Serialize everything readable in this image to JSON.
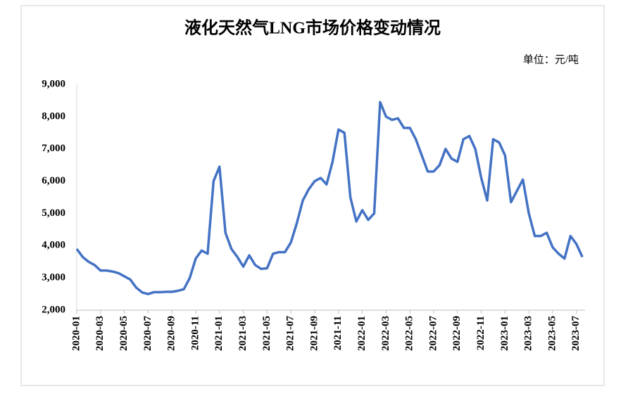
{
  "chart_data": {
    "type": "line",
    "title": "液化天然气LNG市场价格变动情况",
    "unit_label": "单位：元/吨",
    "categories": [
      "2020-01",
      null,
      null,
      null,
      "2020-03",
      null,
      null,
      null,
      "2020-05",
      null,
      null,
      null,
      "2020-07",
      null,
      null,
      null,
      "2020-09",
      null,
      null,
      null,
      "2020-11",
      null,
      null,
      null,
      "2021-01",
      null,
      null,
      null,
      "2021-03",
      null,
      null,
      null,
      "2021-05",
      null,
      null,
      null,
      "2021-07",
      null,
      null,
      null,
      "2021-09",
      null,
      null,
      null,
      "2021-11",
      null,
      null,
      null,
      "2022-01",
      null,
      null,
      null,
      "2022-03",
      null,
      null,
      null,
      "2022-05",
      null,
      null,
      null,
      "2022-07",
      null,
      null,
      null,
      "2022-09",
      null,
      null,
      null,
      "2022-11",
      null,
      null,
      null,
      "2023-01",
      null,
      null,
      null,
      "2023-03",
      null,
      null,
      null,
      "2023-05",
      null,
      null,
      null,
      "2023-07",
      null
    ],
    "series": [
      {
        "color": "#4472c4",
        "values": [
          3900,
          3650,
          3500,
          3400,
          3230,
          3230,
          3200,
          3150,
          3050,
          2950,
          2700,
          2550,
          2500,
          2560,
          2560,
          2570,
          2570,
          2600,
          2650,
          3000,
          3600,
          3850,
          3750,
          6000,
          6450,
          4400,
          3900,
          3650,
          3350,
          3700,
          3400,
          3280,
          3300,
          3750,
          3800,
          3800,
          4100,
          4700,
          5400,
          5750,
          6000,
          6100,
          5900,
          6600,
          7600,
          7500,
          5500,
          4750,
          5100,
          4800,
          5000,
          8450,
          8000,
          7900,
          7950,
          7650,
          7650,
          7300,
          6800,
          6300,
          6300,
          6500,
          7000,
          6700,
          6600,
          7300,
          7400,
          7000,
          6100,
          5400,
          7300,
          7200,
          6800,
          5350,
          5700,
          6050,
          5000,
          4300,
          4300,
          4400,
          3950,
          3750,
          3600,
          4300,
          4050,
          3650
        ]
      }
    ],
    "ylim": [
      2000,
      9000
    ],
    "yticks": [
      {
        "value": 2000,
        "label": "2,000"
      },
      {
        "value": 3000,
        "label": "3,000"
      },
      {
        "value": 4000,
        "label": "4,000"
      },
      {
        "value": 5000,
        "label": "5,000"
      },
      {
        "value": 6000,
        "label": "6,000"
      },
      {
        "value": 7000,
        "label": "7,000"
      },
      {
        "value": 8000,
        "label": "8,000"
      },
      {
        "value": 9000,
        "label": "9,000"
      }
    ],
    "grid": false
  }
}
